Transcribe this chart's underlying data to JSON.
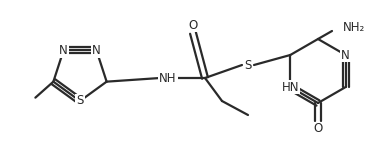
{
  "bg_color": "#ffffff",
  "line_color": "#2a2a2a",
  "line_width": 1.6,
  "font_size": 8.5,
  "figsize": [
    3.84,
    1.53
  ],
  "dpi": 100,
  "xlim": [
    0,
    384
  ],
  "ylim": [
    0,
    153
  ]
}
